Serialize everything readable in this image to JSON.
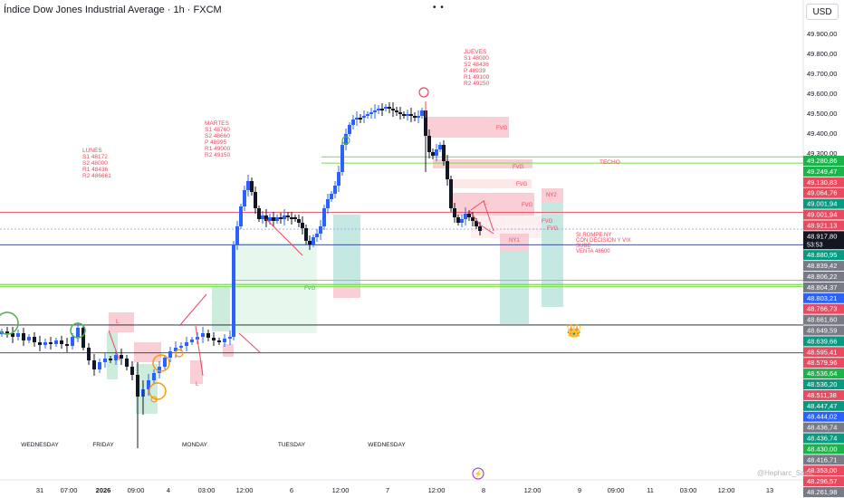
{
  "header": {
    "title": "Índice Dow Jones Industrial Average · 1h · FXCM",
    "currency": "USD",
    "dots": "• •"
  },
  "watermark": "@Hepharc_Sastc",
  "price_axis": {
    "ticks": [
      "49.900,00",
      "49.800,00",
      "49.700,00",
      "49.600,00",
      "49.500,00",
      "49.400,00",
      "49.300,00",
      "49.200,00"
    ],
    "labels": [
      {
        "text": "49.280,86",
        "price": 49280.86,
        "color": "#1bb34a"
      },
      {
        "text": "49.249,47",
        "price": 49249.47,
        "color": "#1bb34a"
      },
      {
        "text": "49.130,83",
        "price": 49130.83,
        "color": "#e84a5f"
      },
      {
        "text": "49.064,76",
        "price": 49064.76,
        "color": "#e84a5f"
      },
      {
        "text": "49.001,94",
        "price": 49001.94,
        "color": "#089981"
      },
      {
        "text": "49.001,94",
        "price": 49001.94,
        "color": "#e84a5f"
      },
      {
        "text": "48.921,13",
        "price": 48921.13,
        "color": "#e84a5f"
      },
      {
        "text": "48.917,80",
        "price": 48917.8,
        "color": "#131722",
        "sub": "53:53"
      },
      {
        "text": "48.880,95",
        "price": 48880.95,
        "color": "#089981"
      },
      {
        "text": "48.839,42",
        "price": 48839.42,
        "color": "#787b86"
      },
      {
        "text": "48.806,22",
        "price": 48806.22,
        "color": "#787b86"
      },
      {
        "text": "48.804,37",
        "price": 48804.37,
        "color": "#787b86"
      },
      {
        "text": "48.803,21",
        "price": 48803.21,
        "color": "#2962ff"
      },
      {
        "text": "48.766,73",
        "price": 48766.73,
        "color": "#e84a5f"
      },
      {
        "text": "48.661,60",
        "price": 48661.6,
        "color": "#787b86"
      },
      {
        "text": "48.649,59",
        "price": 48649.59,
        "color": "#787b86"
      },
      {
        "text": "48.639,66",
        "price": 48639.66,
        "color": "#089981"
      },
      {
        "text": "48.595,41",
        "price": 48595.41,
        "color": "#e84a5f"
      },
      {
        "text": "48.579,96",
        "price": 48579.96,
        "color": "#e84a5f"
      },
      {
        "text": "48.536,64",
        "price": 48536.64,
        "color": "#1bb34a"
      },
      {
        "text": "48.536,20",
        "price": 48536.2,
        "color": "#089981"
      },
      {
        "text": "48.511,38",
        "price": 48511.38,
        "color": "#e84a5f"
      },
      {
        "text": "48.447,47",
        "price": 48447.47,
        "color": "#089981"
      },
      {
        "text": "48.444,02",
        "price": 48444.02,
        "color": "#2962ff"
      },
      {
        "text": "48.436,74",
        "price": 48436.74,
        "color": "#787b86"
      },
      {
        "text": "48.436,74",
        "price": 48436.74,
        "color": "#089981"
      },
      {
        "text": "48.430,00",
        "price": 48430.0,
        "color": "#1bb34a"
      },
      {
        "text": "48.416,71",
        "price": 48416.71,
        "color": "#787b86"
      },
      {
        "text": "48.353,00",
        "price": 48353.0,
        "color": "#e84a5f"
      },
      {
        "text": "48.296,57",
        "price": 48296.57,
        "color": "#e84a5f"
      },
      {
        "text": "48.261,98",
        "price": 48261.98,
        "color": "#787b86"
      },
      {
        "text": "48.238,31",
        "price": 48238.31,
        "color": "#089981"
      }
    ]
  },
  "time_axis": [
    "31",
    "07:00",
    "2026",
    "09:00",
    "4",
    "03:00",
    "12:00",
    "6",
    "12:00",
    "7",
    "12:00",
    "8",
    "12:00",
    "9",
    "09:00",
    "11",
    "03:00",
    "12:00",
    "13"
  ],
  "day_labels": [
    "WEDNESDAY",
    "FRIDAY",
    "MONDAY",
    "TUESDAY",
    "WEDNESDAY"
  ],
  "annotations": {
    "lunes": [
      "LUNES",
      "S1 48172",
      "S2 48000",
      "R1 48436",
      "R2 486661"
    ],
    "martes": [
      "MARTES",
      "S1 48760",
      "S2 48660",
      "P 48995",
      "R1 49000",
      "R2 49150"
    ],
    "jueves": [
      "JUEVES",
      "S1 48000",
      "S2 48436",
      "P 48939",
      "R1 49100",
      "R2 49250"
    ],
    "nota": [
      "SI ROMPE NY",
      "CON DECISION Y VIX",
      "SUBE",
      "VENTA 48600"
    ],
    "techo": "TECHO",
    "fvg": "FVG",
    "ny1": "NY1",
    "ny2": "NY2",
    "l": "L",
    "crown": "👑",
    "lightning": "⚡"
  },
  "colors": {
    "bull": "#2962ff",
    "bear": "#131722",
    "red_line": "#e84a5f",
    "green_line": "#4caf50",
    "navy_line": "#2a3a8c",
    "fvg_red": "#f8c9cf",
    "fvg_green": "#c8efd6",
    "teal": "#4db6a6"
  }
}
